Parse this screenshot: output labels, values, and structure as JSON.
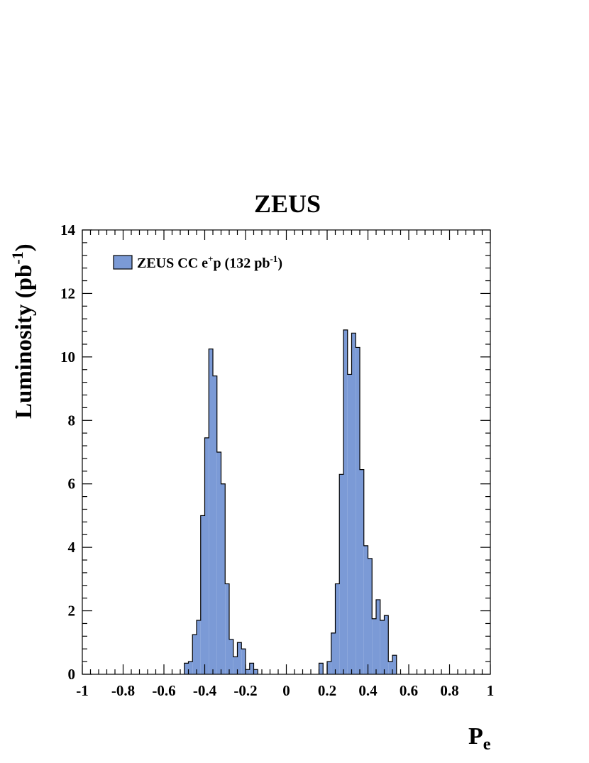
{
  "chart_data": {
    "type": "bar",
    "title": "ZEUS",
    "ylabel_main": "Luminosity (pb",
    "ylabel_sup": "-1",
    "ylabel_close": ")",
    "xlabel_main": "P",
    "xlabel_sub": "e",
    "xlim": [
      -1,
      1
    ],
    "ylim": [
      0,
      14
    ],
    "x_ticks": [
      "-1",
      "-0.8",
      "-0.6",
      "-0.4",
      "-0.2",
      "0",
      "0.2",
      "0.4",
      "0.6",
      "0.8",
      "1"
    ],
    "y_ticks": [
      "0",
      "2",
      "4",
      "6",
      "8",
      "10",
      "12",
      "14"
    ],
    "grid": false,
    "legend_position": "top-left",
    "legend": {
      "part1": "ZEUS CC e",
      "sup1": "+",
      "part2": "p (132 pb",
      "sup2": "-1",
      "part3": ")"
    },
    "fill_color": "#7b9ad6",
    "edge_color": "#000000",
    "bin_width": 0.02,
    "series": [
      {
        "bins": [
          {
            "x": -0.5,
            "value": 0.35
          },
          {
            "x": -0.48,
            "value": 0.4
          },
          {
            "x": -0.46,
            "value": 1.25
          },
          {
            "x": -0.44,
            "value": 1.7
          },
          {
            "x": -0.42,
            "value": 5.0
          },
          {
            "x": -0.4,
            "value": 7.45
          },
          {
            "x": -0.38,
            "value": 10.25
          },
          {
            "x": -0.36,
            "value": 9.4
          },
          {
            "x": -0.34,
            "value": 7.0
          },
          {
            "x": -0.32,
            "value": 6.0
          },
          {
            "x": -0.3,
            "value": 2.85
          },
          {
            "x": -0.28,
            "value": 1.1
          },
          {
            "x": -0.26,
            "value": 0.55
          },
          {
            "x": -0.24,
            "value": 1.0
          },
          {
            "x": -0.22,
            "value": 0.8
          },
          {
            "x": -0.2,
            "value": 0.15
          },
          {
            "x": -0.18,
            "value": 0.35
          },
          {
            "x": -0.16,
            "value": 0.15
          },
          {
            "x": 0.16,
            "value": 0.35
          },
          {
            "x": 0.2,
            "value": 0.4
          },
          {
            "x": 0.22,
            "value": 1.3
          },
          {
            "x": 0.24,
            "value": 2.85
          },
          {
            "x": 0.26,
            "value": 6.3
          },
          {
            "x": 0.28,
            "value": 10.85
          },
          {
            "x": 0.3,
            "value": 9.45
          },
          {
            "x": 0.32,
            "value": 10.75
          },
          {
            "x": 0.34,
            "value": 10.3
          },
          {
            "x": 0.36,
            "value": 6.45
          },
          {
            "x": 0.38,
            "value": 4.05
          },
          {
            "x": 0.4,
            "value": 3.65
          },
          {
            "x": 0.42,
            "value": 1.75
          },
          {
            "x": 0.44,
            "value": 2.35
          },
          {
            "x": 0.46,
            "value": 1.7
          },
          {
            "x": 0.48,
            "value": 1.85
          },
          {
            "x": 0.5,
            "value": 0.4
          },
          {
            "x": 0.52,
            "value": 0.6
          }
        ]
      }
    ]
  }
}
